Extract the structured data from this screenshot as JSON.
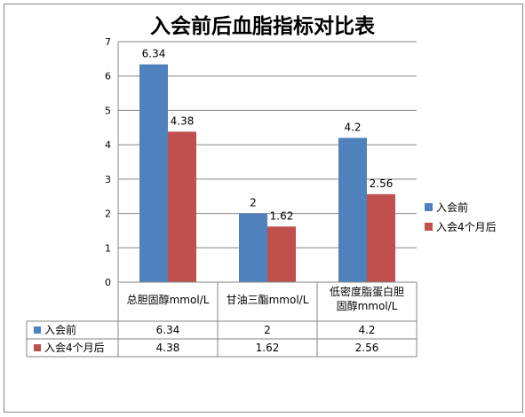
{
  "chart_data": {
    "type": "bar",
    "title": "入会前后血脂指标对比表",
    "categories": [
      [
        "总胆固醇mmol/L"
      ],
      [
        "甘油三酯mmol/L"
      ],
      [
        "低密度脂蛋白胆",
        "固醇mmol/L"
      ]
    ],
    "series": [
      {
        "name": "入会前",
        "values": [
          6.34,
          2,
          4.2
        ],
        "color": "#4f81bd"
      },
      {
        "name": "入会4个月后",
        "values": [
          4.38,
          1.62,
          2.56
        ],
        "color": "#c0504d"
      }
    ],
    "data_labels": [
      [
        "6.34",
        "2",
        "4.2"
      ],
      [
        "4.38",
        "1.62",
        "2.56"
      ]
    ],
    "yticks": [
      "0",
      "1",
      "2",
      "3",
      "4",
      "5",
      "6",
      "7"
    ],
    "ylim": [
      0,
      7
    ],
    "grid": true,
    "legend": "right",
    "data_table": true
  }
}
